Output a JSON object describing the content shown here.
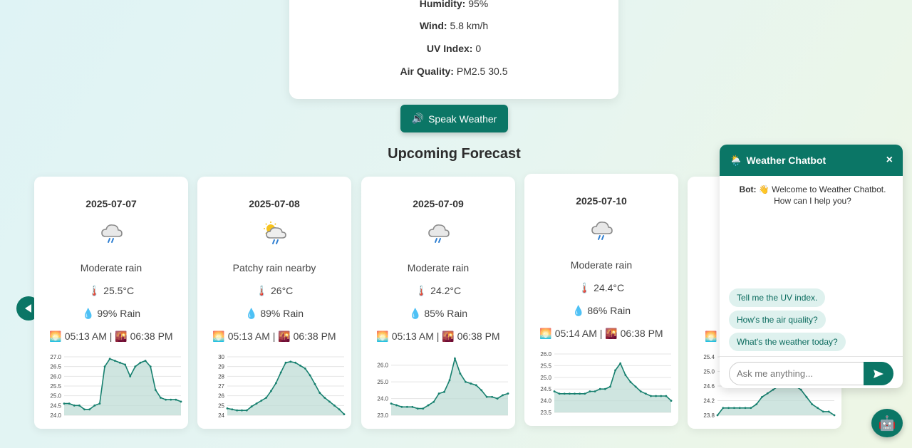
{
  "current": {
    "stats": [
      {
        "label": "Humidity:",
        "value": "95%"
      },
      {
        "label": "Wind:",
        "value": "5.8 km/h"
      },
      {
        "label": "UV Index:",
        "value": "0"
      },
      {
        "label": "Air Quality:",
        "value": "PM2.5 30.5"
      }
    ]
  },
  "speak_button": {
    "icon": "🔊",
    "label": "Speak Weather"
  },
  "forecast": {
    "title": "Upcoming Forecast",
    "cards": [
      {
        "date": "2025-07-07",
        "icon": "rain-cloud-icon",
        "condition": "Moderate rain",
        "temp_icon": "🌡️",
        "temp": "25.5°C",
        "rain_icon": "💧",
        "rain": "99% Rain",
        "sunrise_icon": "🌅",
        "sunrise": "05:13 AM",
        "sep": "|",
        "sunset_icon": "🌇",
        "sunset": "06:38 PM"
      },
      {
        "date": "2025-07-08",
        "icon": "sun-rain-cloud-icon",
        "condition": "Patchy rain nearby",
        "temp_icon": "🌡️",
        "temp": "26°C",
        "rain_icon": "💧",
        "rain": "89% Rain",
        "sunrise_icon": "🌅",
        "sunrise": "05:13 AM",
        "sep": "|",
        "sunset_icon": "🌇",
        "sunset": "06:38 PM"
      },
      {
        "date": "2025-07-09",
        "icon": "rain-cloud-icon",
        "condition": "Moderate rain",
        "temp_icon": "🌡️",
        "temp": "24.2°C",
        "rain_icon": "💧",
        "rain": "85% Rain",
        "sunrise_icon": "🌅",
        "sunrise": "05:13 AM",
        "sep": "|",
        "sunset_icon": "🌇",
        "sunset": "06:38 PM"
      },
      {
        "date": "2025-07-10",
        "icon": "rain-cloud-icon",
        "condition": "Moderate rain",
        "temp_icon": "🌡️",
        "temp": "24.4°C",
        "rain_icon": "💧",
        "rain": "86% Rain",
        "sunrise_icon": "🌅",
        "sunrise": "05:14 AM",
        "sep": "|",
        "sunset_icon": "🌇",
        "sunset": "06:38 PM"
      },
      {
        "date": "",
        "icon": "",
        "condition": "",
        "temp_icon": "",
        "temp": "",
        "rain_icon": "",
        "rain": "",
        "sunrise_icon": "🌅",
        "sunrise": "",
        "sep": "",
        "sunset_icon": "",
        "sunset": ""
      }
    ]
  },
  "chatbot": {
    "title_icon": "🌦️",
    "title": "Weather Chatbot",
    "close": "×",
    "bot_label": "Bot:",
    "welcome": "👋 Welcome to Weather Chatbot. How can I help you?",
    "quick_replies": [
      "Tell me the UV index.",
      "How's the air quality?",
      "What's the weather today?"
    ],
    "input_placeholder": "Ask me anything...",
    "fab_icon": "🤖"
  },
  "colors": {
    "accent": "#0b7666",
    "chart_line": "#17806f",
    "chart_fill": "#bfdcd6"
  },
  "chart_data": [
    {
      "type": "area",
      "title": "",
      "xlabel": "",
      "ylabel": "",
      "ylim": [
        24.0,
        27.0
      ],
      "y_ticks": [
        "27.0",
        "26.5",
        "26.0",
        "25.5",
        "25.0",
        "24.5",
        "24.0"
      ],
      "series": [
        {
          "values": [
            24.6,
            24.6,
            24.5,
            24.5,
            24.3,
            24.3,
            24.5,
            24.6,
            26.5,
            26.9,
            26.8,
            26.7,
            26.6,
            26.0,
            26.5,
            26.7,
            26.8,
            26.5,
            25.3,
            24.9,
            24.8,
            24.8,
            24.8,
            24.7
          ]
        }
      ]
    },
    {
      "type": "area",
      "title": "",
      "xlabel": "",
      "ylabel": "",
      "ylim": [
        24,
        30
      ],
      "y_ticks": [
        "30",
        "29",
        "28",
        "27",
        "26",
        "25",
        "24"
      ],
      "series": [
        {
          "values": [
            24.7,
            24.6,
            24.5,
            24.5,
            24.5,
            24.9,
            25.2,
            25.5,
            25.8,
            26.5,
            27.3,
            28.4,
            29.4,
            29.5,
            29.4,
            29.1,
            28.8,
            28.1,
            27.2,
            26.3,
            25.8,
            25.4,
            25.0,
            24.6,
            24.1
          ]
        }
      ]
    },
    {
      "type": "area",
      "title": "",
      "xlabel": "",
      "ylabel": "",
      "ylim": [
        23.0,
        26.5
      ],
      "y_ticks": [
        "26.0",
        "25.0",
        "24.0",
        "23.0"
      ],
      "series": [
        {
          "values": [
            23.7,
            23.6,
            23.5,
            23.5,
            23.5,
            23.4,
            23.4,
            23.6,
            23.8,
            24.3,
            24.4,
            25.1,
            26.4,
            25.5,
            25.0,
            24.9,
            24.8,
            24.5,
            24.1,
            24.1,
            24.0,
            24.2,
            24.3
          ]
        }
      ]
    },
    {
      "type": "area",
      "title": "",
      "xlabel": "",
      "ylabel": "",
      "ylim": [
        23.5,
        26.0
      ],
      "y_ticks": [
        "26.0",
        "25.5",
        "25.0",
        "24.5",
        "24.0",
        "23.5"
      ],
      "series": [
        {
          "values": [
            24.4,
            24.3,
            24.3,
            24.3,
            24.3,
            24.3,
            24.3,
            24.4,
            24.4,
            24.5,
            24.5,
            24.6,
            25.3,
            25.6,
            25.1,
            24.8,
            24.6,
            24.4,
            24.3,
            24.2,
            24.2,
            24.2,
            24.2,
            24.0
          ]
        }
      ]
    },
    {
      "type": "area",
      "title": "",
      "xlabel": "",
      "ylabel": "",
      "ylim": [
        23.8,
        25.4
      ],
      "y_ticks": [
        "25.4",
        "25.0",
        "24.6",
        "24.2",
        "23.8"
      ],
      "series": [
        {
          "values": [
            23.8,
            24.0,
            24.0,
            24.0,
            24.0,
            24.0,
            24.0,
            24.1,
            24.3,
            24.4,
            24.5,
            24.6,
            24.6,
            24.6,
            24.6,
            24.5,
            24.3,
            24.1,
            24.0,
            23.9,
            23.9,
            23.8
          ]
        }
      ]
    }
  ]
}
